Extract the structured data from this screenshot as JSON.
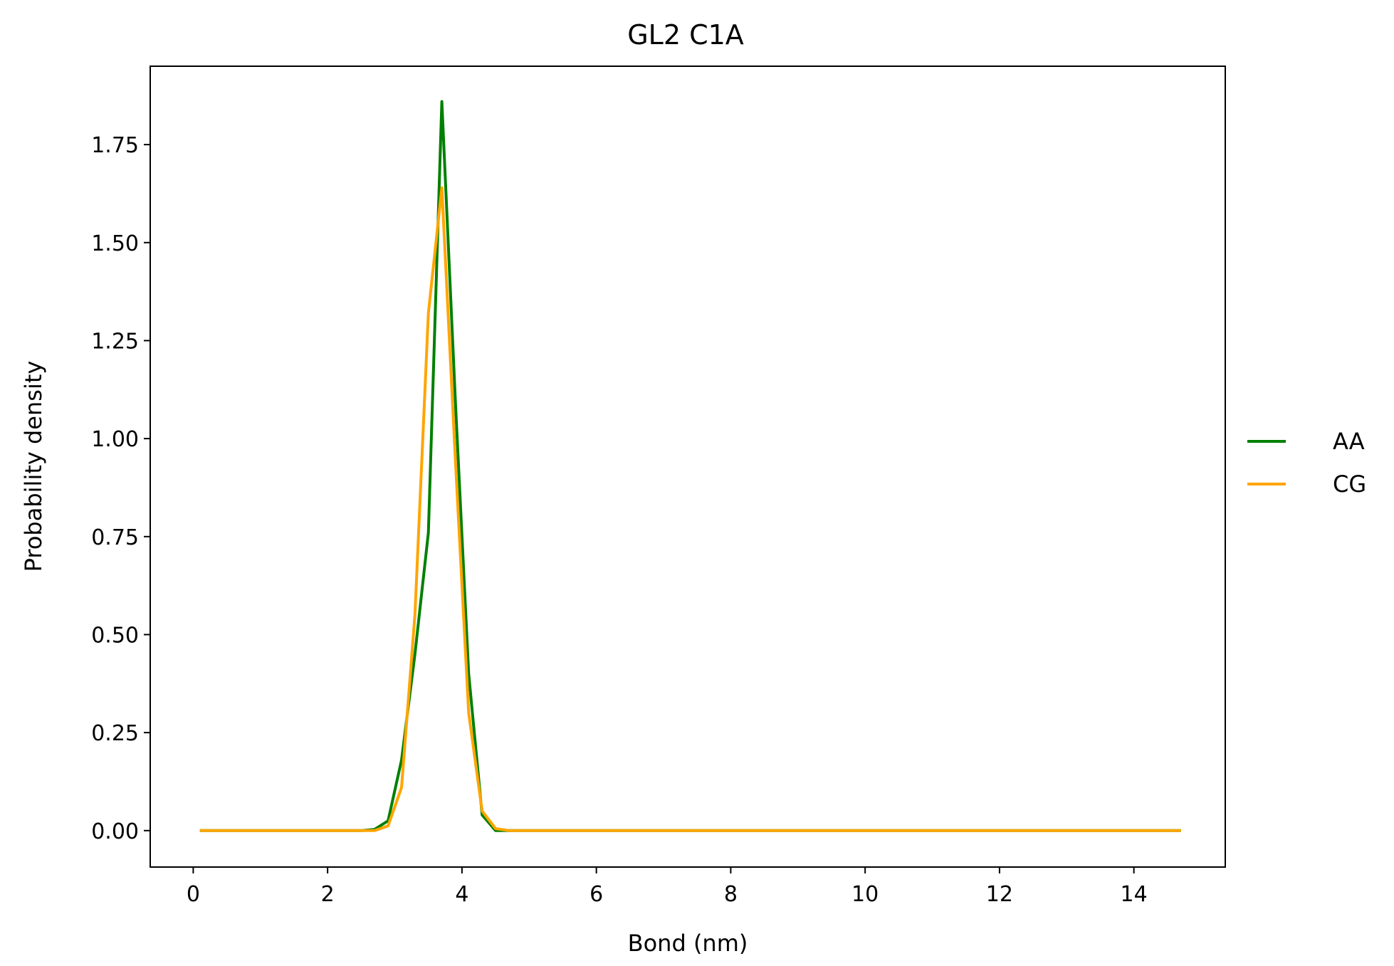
{
  "chart_data": {
    "type": "line",
    "title": "GL2 C1A",
    "xlabel": "Bond (nm)",
    "ylabel": "Probability density",
    "xlim": [
      -0.64,
      15.36
    ],
    "ylim": [
      -0.093,
      1.95
    ],
    "grid": false,
    "legend_position": "outside-right",
    "xticks": [
      0,
      2,
      4,
      6,
      8,
      10,
      12,
      14
    ],
    "xtick_labels": [
      "0",
      "2",
      "4",
      "6",
      "8",
      "10",
      "12",
      "14"
    ],
    "yticks": [
      0.0,
      0.25,
      0.5,
      0.75,
      1.0,
      1.25,
      1.5,
      1.75
    ],
    "ytick_labels": [
      "0.00",
      "0.25",
      "0.50",
      "0.75",
      "1.00",
      "1.25",
      "1.50",
      "1.75"
    ],
    "series": [
      {
        "name": "AA",
        "color": "#008000",
        "x": [
          0.1,
          0.5,
          1.0,
          1.5,
          2.0,
          2.5,
          2.7,
          2.9,
          3.1,
          3.3,
          3.5,
          3.7,
          3.9,
          4.1,
          4.3,
          4.5,
          4.7,
          5.0,
          6.0,
          8.0,
          10.0,
          12.0,
          14.0,
          14.7
        ],
        "y": [
          0.0,
          0.0,
          0.0,
          0.0,
          0.0,
          0.0,
          0.003,
          0.025,
          0.18,
          0.45,
          0.76,
          1.86,
          1.1,
          0.4,
          0.04,
          0.0,
          0.0,
          0.0,
          0.0,
          0.0,
          0.0,
          0.0,
          0.0,
          0.0
        ]
      },
      {
        "name": "CG",
        "color": "#FFA500",
        "x": [
          0.1,
          0.5,
          1.0,
          1.5,
          2.0,
          2.5,
          2.7,
          2.9,
          3.1,
          3.3,
          3.5,
          3.7,
          3.9,
          4.1,
          4.3,
          4.5,
          4.7,
          5.0,
          6.0,
          8.0,
          10.0,
          12.0,
          14.0,
          14.7
        ],
        "y": [
          0.0,
          0.0,
          0.0,
          0.0,
          0.0,
          0.0,
          0.0,
          0.012,
          0.11,
          0.55,
          1.32,
          1.64,
          0.95,
          0.3,
          0.05,
          0.005,
          0.0,
          0.0,
          0.0,
          0.0,
          0.0,
          0.0,
          0.0,
          0.0
        ]
      }
    ]
  }
}
